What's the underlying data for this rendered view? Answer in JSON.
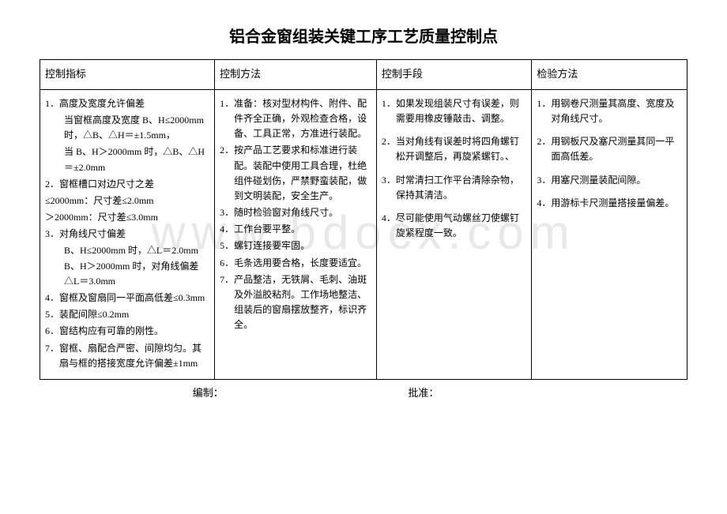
{
  "title": "铝合金窗组装关键工序工艺质量控制点",
  "watermark": "www.bdocx.com",
  "headers": {
    "col1": "控制指标",
    "col2": "控制方法",
    "col3": "控制手段",
    "col4": "检验方法"
  },
  "col1_items": {
    "i1": "1．高度及宽度允许偏差",
    "i1a": "当窗框高度及宽度 B、H≤2000mm 时，△B、△H＝±1.5mm，",
    "i1b": "当 B、H＞2000mm 时，△B、△H＝±2.0mm",
    "i2": "2．窗框槽口对边尺寸之差",
    "i2a": "≤2000mm：尺寸差≤2.0mm",
    "i2b": "＞2000mm：尺寸差≤3.0mm",
    "i3": "3．对角线尺寸偏差",
    "i3a": "B、H≤2000mm 时，△L＝2.0mm　　　　　　B、H＞2000mm 时，对角线偏差△L＝3.0mm",
    "i4": "4．窗框及窗扇同一平面高低差≤0.3mm",
    "i5": "5．装配间隙≤0.2mm",
    "i6": "6．窗结构应有可靠的刚性。",
    "i7": "7．窗框、扇配合严密、间隙均匀。其扇与框的搭接宽度允许偏差±1mm"
  },
  "col2_items": {
    "i1": "1．准备：核对型材构件、附件、配件齐全正确，外观检查合格，设备、工具正常，方准进行装配。",
    "i2": "2．按产品工艺要求和标准进行装配。装配中使用工具合理，杜绝组件碰划伤，严禁野蛮装配，做到文明装配，安全生产。",
    "i3": "3．随时检验窗对角线尺寸。",
    "i4": "4．工作台要平整。",
    "i5": "5．螺钉连接要牢固。",
    "i6": "6．毛条选用要合格，长度要适宜。",
    "i7": "7．产品整洁，无铁屑、毛刺、油斑及外溢胶粘剂。工作场地整洁、组装后的窗扇摆放整齐，标识齐全。"
  },
  "col3_items": {
    "i1": "1．如果发现组装尺寸有误差，则需要用橡皮锤敲击、调整。",
    "i2": "2．当对角线有误差时将四角螺钉松开调整后，再旋紧螺钉。、",
    "i3": "3．时常清扫工作平台清除杂物，保持其清洁。",
    "i4": "4．尽可能使用气动螺丝刀使螺钉旋紧程度一致。"
  },
  "col4_items": {
    "i1": "1．用钢卷尺测量其高度、宽度及对角线尺寸。",
    "i2": "2．用钢板尺及塞尺测量其同一平面高低差。",
    "i3": "3．用塞尺测量装配间隙。",
    "i4": "4．用游标卡尺测量搭接量偏差。"
  },
  "footer": {
    "left": "编制：",
    "right": "批准："
  }
}
